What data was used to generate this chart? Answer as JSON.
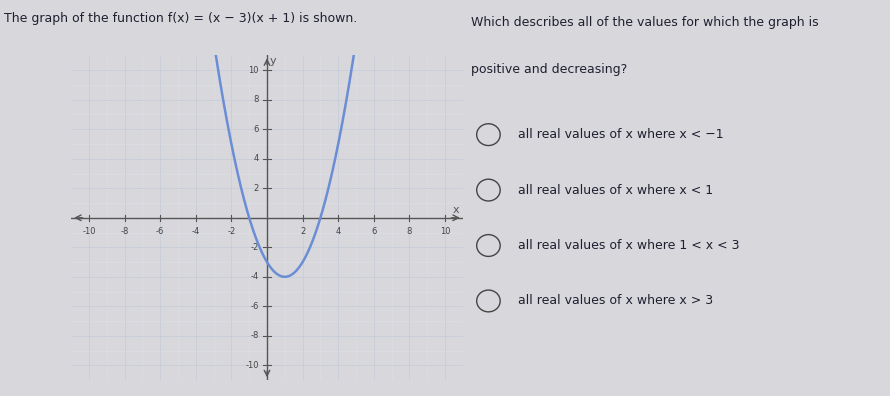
{
  "title_left": "The graph of the function f(x) = (x − 3)(x + 1) is shown.",
  "question_line1": "Which describes all of the values for which the graph is",
  "question_line2": "positive and decreasing?",
  "options": [
    "all real values of x where x < −1",
    "all real values of x where x < 1",
    "all real values of x where 1 < x < 3",
    "all real values of x where x > 3"
  ],
  "page_bg": "#d8d8dc",
  "graph_panel_bg": "#ffffff",
  "right_panel_bg": "#d8d8dc",
  "curve_color": "#6b8dd6",
  "grid_color_major": "#c8ccd8",
  "grid_color_minor": "#dde0e8",
  "axis_color": "#555555",
  "tick_label_color": "#444444",
  "text_color": "#1e2030",
  "radio_color": "#444444",
  "xlim": [
    -11,
    11
  ],
  "ylim": [
    -11,
    11
  ],
  "figsize": [
    8.9,
    3.96
  ],
  "dpi": 100
}
